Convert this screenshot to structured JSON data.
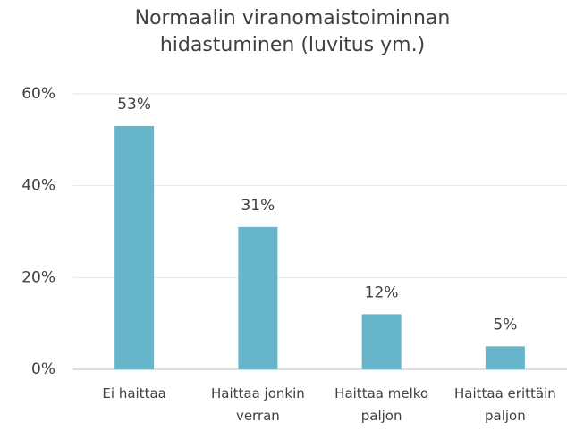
{
  "chart_data": {
    "type": "bar",
    "title": "Normaalin viranomaistoiminnan hidastuminen (luvitus ym.)",
    "categories": [
      "Ei haittaa",
      "Haittaa jonkin verran",
      "Haittaa melko paljon",
      "Haittaa erittäin paljon"
    ],
    "values": [
      53,
      31,
      12,
      5
    ],
    "value_labels": [
      "53%",
      "31%",
      "12%",
      "5%"
    ],
    "color": "#67b5cb",
    "ylim": [
      0,
      60
    ],
    "yticks": [
      {
        "value": 0,
        "label": "0%"
      },
      {
        "value": 20,
        "label": "20%"
      },
      {
        "value": 40,
        "label": "40%"
      },
      {
        "value": 60,
        "label": "60%"
      }
    ],
    "grid": true
  }
}
